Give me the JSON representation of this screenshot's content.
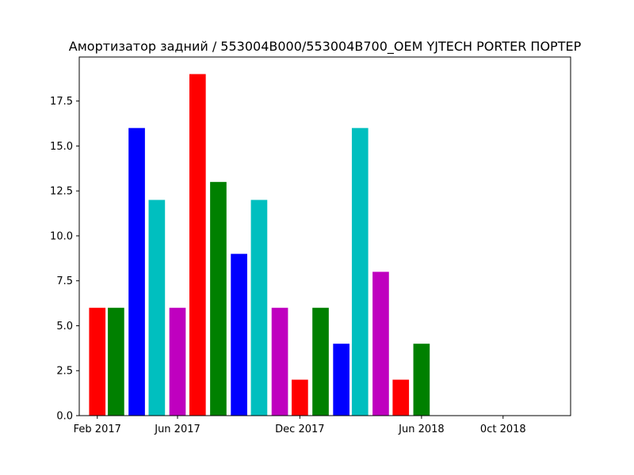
{
  "chart_data": {
    "type": "bar",
    "title": "Амортизатор задний / 553004B000/553004B700_OEM YJTECH PORTER ПОРТЕР",
    "xlabel": "",
    "ylabel": "",
    "x_axis": "date (monthly)",
    "xlim": [
      "2017-01-05",
      "2019-01-10"
    ],
    "ylim": [
      0,
      19.95
    ],
    "grid": false,
    "legend": "none",
    "x_ticks": [
      {
        "date": "2017-02-01",
        "label": "Feb 2017"
      },
      {
        "date": "2017-06-01",
        "label": "Jun 2017"
      },
      {
        "date": "2017-12-01",
        "label": "Dec 2017"
      },
      {
        "date": "2018-06-01",
        "label": "Jun 2018"
      },
      {
        "date": "2018-10-01",
        "label": "0ct 2018"
      }
    ],
    "y_ticks": [
      {
        "value": 0,
        "label": "0.0"
      },
      {
        "value": 2.5,
        "label": "2.5"
      },
      {
        "value": 5,
        "label": "5.0"
      },
      {
        "value": 7.5,
        "label": "7.5"
      },
      {
        "value": 10,
        "label": "10.0"
      },
      {
        "value": 12.5,
        "label": "12.5"
      },
      {
        "value": 15,
        "label": "15.0"
      },
      {
        "value": 17.5,
        "label": "17.5"
      }
    ],
    "series": [
      {
        "x": [
          "2017-02-01",
          "2017-03-01",
          "2017-04-01",
          "2017-05-01",
          "2017-06-01",
          "2017-07-01",
          "2017-08-01",
          "2017-09-01",
          "2017-10-01",
          "2017-11-01",
          "2017-12-01",
          "2018-01-01",
          "2018-02-01",
          "2018-03-01",
          "2018-04-01",
          "2018-05-01",
          "2018-06-01",
          "2018-07-01"
        ],
        "values": [
          6,
          6,
          16,
          12,
          6,
          19,
          13,
          9,
          12,
          6,
          2,
          6,
          4,
          16,
          8,
          2,
          4,
          0
        ],
        "colors": [
          "#ff0000",
          "#008000",
          "#0000ff",
          "#00bfbf",
          "#bf00bf",
          "#ff0000",
          "#008000",
          "#0000ff",
          "#00bfbf",
          "#bf00bf",
          "#ff0000",
          "#008000",
          "#0000ff",
          "#00bfbf",
          "#bf00bf",
          "#ff0000",
          "#008000",
          "#0000ff"
        ]
      }
    ]
  }
}
